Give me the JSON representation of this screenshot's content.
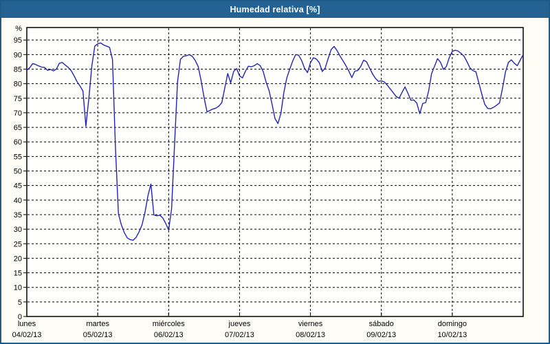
{
  "window": {
    "title_bar": {
      "text": "Humedad relativa [%]"
    }
  },
  "colors": {
    "title_bar_bg": "#236293",
    "title_text": "#ffffff",
    "frame_border": "#205b88",
    "canvas_bg": "#fdfdf6",
    "plot_bg": "#fffffe",
    "grid": "#000000",
    "axis": "#000000",
    "label_text": "#000000",
    "series_line": "#2222b8"
  },
  "chart_data": {
    "type": "line",
    "title": "Humedad relativa [%]",
    "legend": "none",
    "grid": "on (black dashed)",
    "y_axis": {
      "unit_label": "%",
      "tick_values": [
        0,
        5,
        10,
        15,
        20,
        25,
        30,
        35,
        40,
        45,
        50,
        55,
        60,
        65,
        70,
        75,
        80,
        85,
        90,
        95
      ],
      "min": 0,
      "max_visible": 99.3,
      "gridlines": "horizontal dashed line at every tick above 0"
    },
    "x_axis": {
      "tick_labels": [
        {
          "day": "lunes",
          "date": "04/02/13"
        },
        {
          "day": "martes",
          "date": "05/02/13"
        },
        {
          "day": "miércoles",
          "date": "06/02/13"
        },
        {
          "day": "jueves",
          "date": "07/02/13"
        },
        {
          "day": "viernes",
          "date": "08/02/13"
        },
        {
          "day": "sábado",
          "date": "09/02/13"
        },
        {
          "day": "domingo",
          "date": "10/02/13"
        }
      ],
      "hours_per_day": 24,
      "total_days": 7,
      "gridlines": "vertical dashed line at each interior day boundary"
    },
    "series": [
      {
        "name": "Humedad relativa",
        "unit": "%",
        "sample_interval_hours": 1,
        "start": "lunes 04/02/13 00:00",
        "values": [
          84.6,
          85.5,
          86.9,
          86.6,
          86.1,
          85.7,
          85.6,
          84.6,
          84.9,
          84.4,
          85.0,
          87.0,
          87.3,
          86.4,
          85.6,
          84.5,
          82.7,
          80.7,
          79.2,
          77.5,
          65.4,
          75.0,
          86.0,
          92.9,
          93.7,
          94.0,
          93.3,
          92.9,
          92.5,
          88.3,
          58.0,
          35.3,
          31.5,
          28.8,
          27.0,
          26.4,
          26.2,
          27.2,
          29.1,
          31.5,
          35.8,
          41.5,
          45.5,
          34.9,
          34.6,
          34.8,
          33.9,
          32.0,
          29.7,
          37.0,
          59.0,
          80.5,
          88.4,
          89.4,
          89.6,
          90.0,
          89.4,
          88.0,
          85.9,
          81.0,
          75.2,
          70.3,
          70.8,
          71.3,
          71.6,
          72.3,
          73.5,
          78.5,
          83.5,
          80.3,
          84.2,
          85.2,
          82.7,
          82.0,
          84.3,
          86.0,
          85.8,
          86.2,
          86.9,
          86.2,
          84.2,
          80.5,
          77.6,
          73.0,
          68.0,
          66.3,
          69.8,
          77.0,
          82.0,
          85.0,
          87.8,
          90.0,
          89.8,
          88.0,
          85.3,
          83.8,
          87.2,
          88.9,
          88.5,
          87.2,
          84.2,
          85.4,
          88.7,
          91.7,
          92.8,
          91.4,
          89.5,
          87.9,
          86.2,
          84.3,
          82.1,
          84.3,
          84.5,
          85.9,
          88.1,
          87.5,
          85.4,
          83.4,
          81.8,
          80.8,
          81.0,
          80.6,
          79.5,
          78.2,
          76.9,
          75.6,
          75.0,
          77.0,
          78.9,
          76.7,
          74.3,
          74.4,
          73.3,
          69.7,
          73.2,
          73.5,
          77.5,
          83.5,
          86.0,
          88.6,
          87.4,
          84.9,
          85.9,
          89.0,
          91.1,
          91.5,
          91.2,
          90.4,
          89.4,
          87.5,
          85.4,
          84.5,
          84.1,
          80.2,
          76.4,
          72.9,
          71.5,
          71.4,
          71.9,
          72.6,
          73.4,
          78.4,
          84.0,
          87.3,
          88.2,
          87.0,
          86.2,
          88.1,
          90.0
        ]
      }
    ]
  }
}
